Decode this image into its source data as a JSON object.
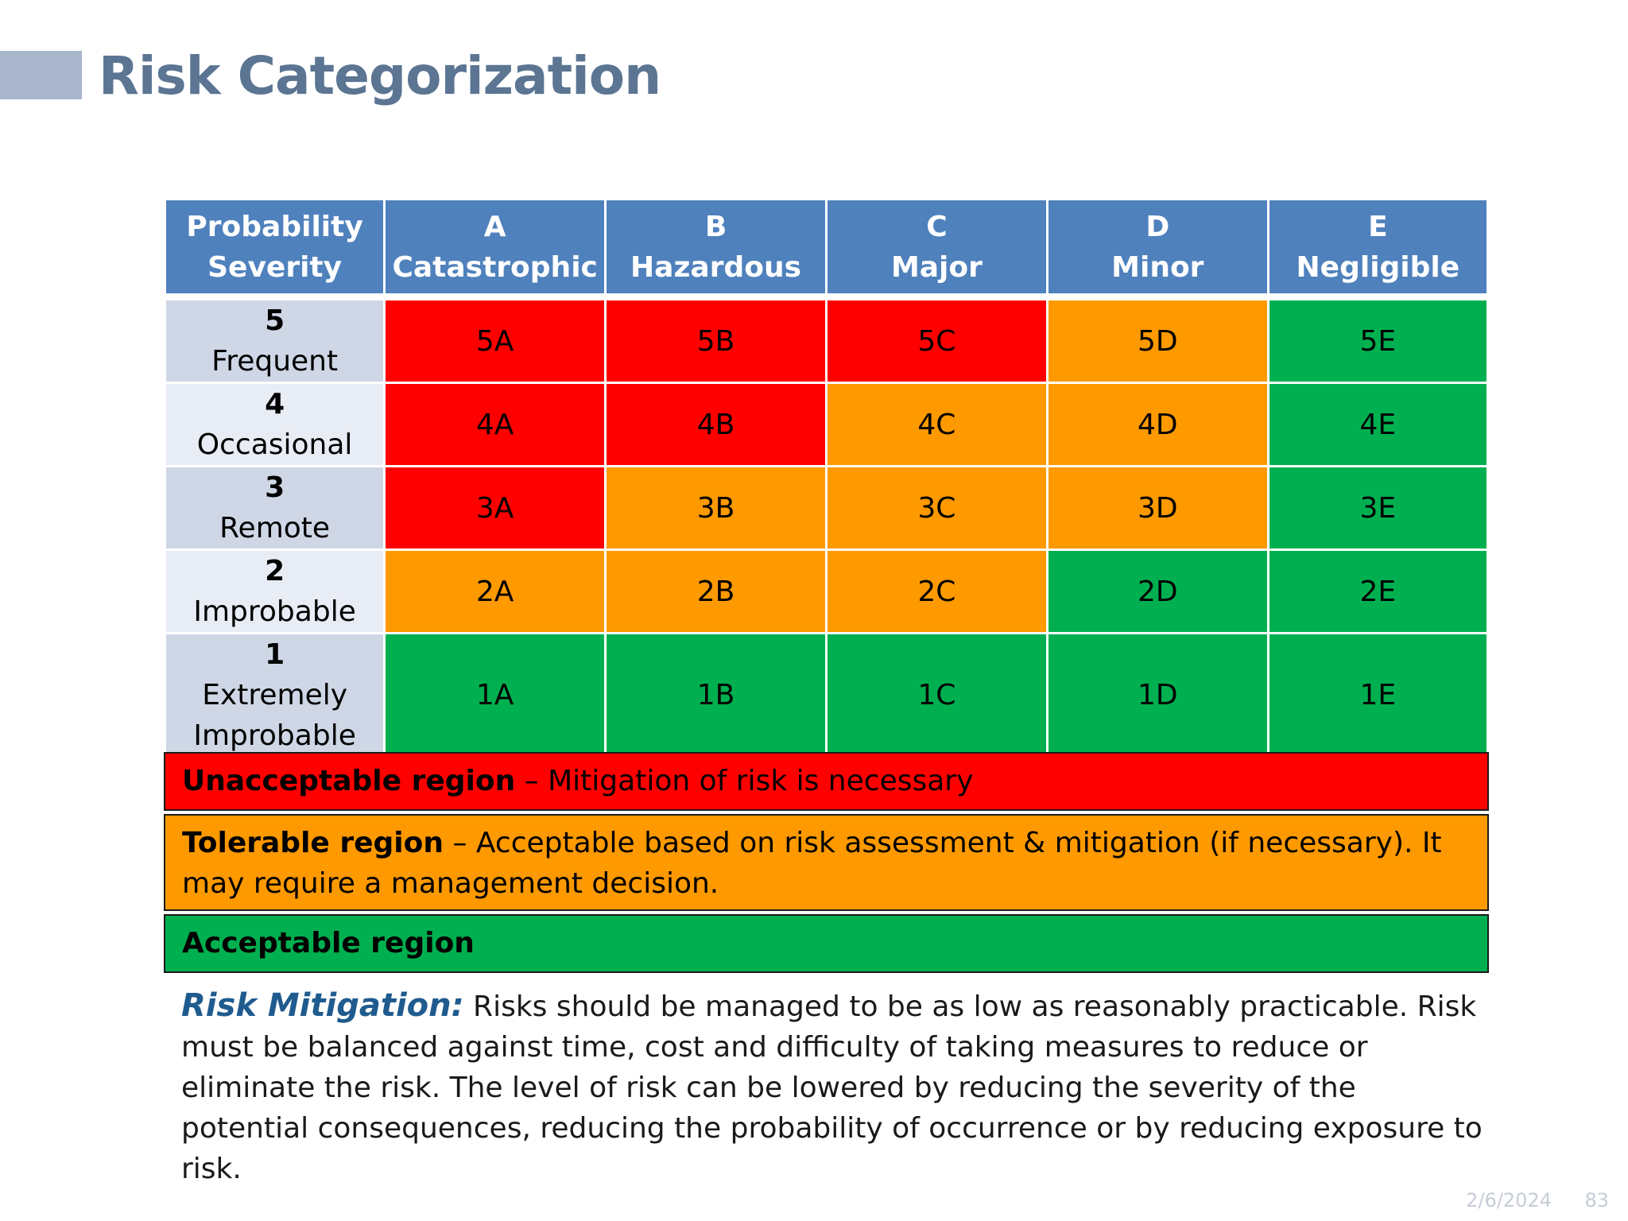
{
  "title": "Risk Categorization",
  "header": {
    "corner_line1": "Probability",
    "corner_line2": "Severity",
    "columns": [
      {
        "letter": "A",
        "label": "Catastrophic"
      },
      {
        "letter": "B",
        "label": "Hazardous"
      },
      {
        "letter": "C",
        "label": "Major"
      },
      {
        "letter": "D",
        "label": "Minor"
      },
      {
        "letter": "E",
        "label": "Negligible"
      }
    ]
  },
  "rows": [
    {
      "level": "5",
      "label": "Frequent",
      "cells": [
        "5A",
        "5B",
        "5C",
        "5D",
        "5E"
      ]
    },
    {
      "level": "4",
      "label": "Occasional",
      "cells": [
        "4A",
        "4B",
        "4C",
        "4D",
        "4E"
      ]
    },
    {
      "level": "3",
      "label": "Remote",
      "cells": [
        "3A",
        "3B",
        "3C",
        "3D",
        "3E"
      ]
    },
    {
      "level": "2",
      "label": "Improbable",
      "cells": [
        "2A",
        "2B",
        "2C",
        "2D",
        "2E"
      ]
    },
    {
      "level": "1",
      "label_line1": "Extremely",
      "label_line2": "Improbable",
      "cells": [
        "1A",
        "1B",
        "1C",
        "1D",
        "1E"
      ]
    }
  ],
  "colors": {
    "unacceptable": "#ff0000",
    "tolerable": "#ff9900",
    "acceptable": "#00b050",
    "header": "#4f81bd",
    "title": "#5b7593"
  },
  "legend": {
    "unacceptable_title": "Unacceptable region",
    "unacceptable_text": " – Mitigation of risk is necessary",
    "tolerable_title": "Tolerable region",
    "tolerable_text": " – Acceptable based on risk assessment & mitigation (if necessary). It may require a management decision.",
    "acceptable_title": "Acceptable region"
  },
  "mitigation": {
    "lead": "Risk Mitigation:",
    "text": " Risks should be managed to be as low as reasonably practicable. Risk must be balanced against time, cost and difficulty of taking measures to reduce or eliminate the risk. The level of risk can be lowered by reducing the severity of the potential consequences, reducing the probability of occurrence or by reducing exposure to risk."
  },
  "footer": {
    "date": "2/6/2024",
    "page": "83"
  }
}
